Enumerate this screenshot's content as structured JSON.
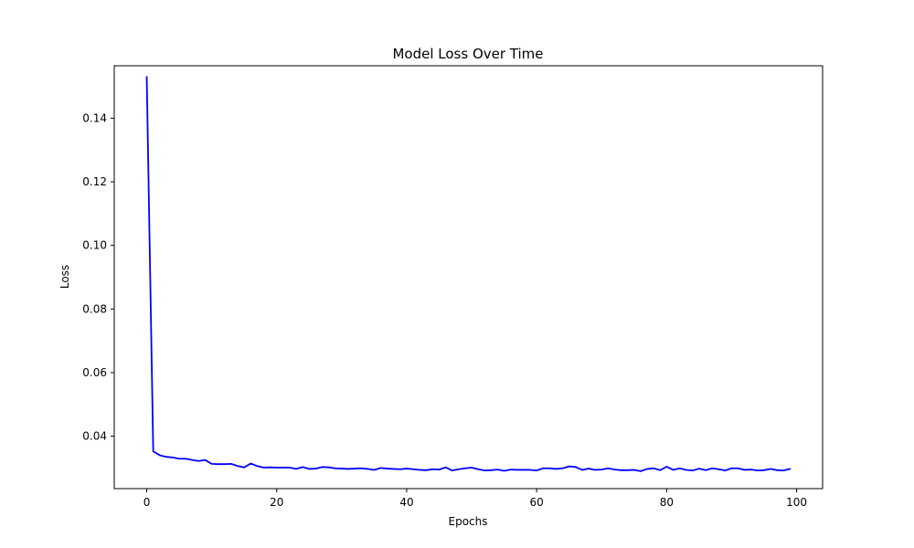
{
  "chart_data": {
    "type": "line",
    "title": "Model Loss Over Time",
    "xlabel": "Epochs",
    "ylabel": "Loss",
    "xlim": [
      -5,
      104
    ],
    "ylim": [
      0.0235,
      0.1565
    ],
    "xticks": [
      0,
      20,
      40,
      60,
      80,
      100
    ],
    "yticks": [
      0.04,
      0.06,
      0.08,
      0.1,
      0.12,
      0.14
    ],
    "xtick_labels": [
      "0",
      "20",
      "40",
      "60",
      "80",
      "100"
    ],
    "ytick_labels": [
      "0.04",
      "0.06",
      "0.08",
      "0.10",
      "0.12",
      "0.14"
    ],
    "grid": false,
    "color": "#0000ff",
    "series": [
      {
        "x": [
          0,
          1,
          2,
          3,
          4,
          5,
          6,
          7,
          8,
          9,
          10,
          11,
          12,
          13,
          14,
          15,
          16,
          17,
          18,
          19,
          20,
          21,
          22,
          23,
          24,
          25,
          26,
          27,
          28,
          29,
          30,
          31,
          32,
          33,
          34,
          35,
          36,
          37,
          38,
          39,
          40,
          41,
          42,
          43,
          44,
          45,
          46,
          47,
          48,
          49,
          50,
          51,
          52,
          53,
          54,
          55,
          56,
          57,
          58,
          59,
          60,
          61,
          62,
          63,
          64,
          65,
          66,
          67,
          68,
          69,
          70,
          71,
          72,
          73,
          74,
          75,
          76,
          77,
          78,
          79,
          80,
          81,
          82,
          83,
          84,
          85,
          86,
          87,
          88,
          89,
          90,
          91,
          92,
          93,
          94,
          95,
          96,
          97,
          98,
          99
        ],
        "values": [
          0.153,
          0.0352,
          0.034,
          0.0335,
          0.0333,
          0.0329,
          0.0329,
          0.0325,
          0.0322,
          0.0325,
          0.0313,
          0.0312,
          0.0312,
          0.0313,
          0.0306,
          0.0302,
          0.0314,
          0.0306,
          0.0301,
          0.0302,
          0.0301,
          0.0301,
          0.0301,
          0.0297,
          0.0303,
          0.0297,
          0.0298,
          0.0303,
          0.0302,
          0.0299,
          0.0298,
          0.0297,
          0.0298,
          0.0299,
          0.0297,
          0.0294,
          0.03,
          0.0298,
          0.0297,
          0.0296,
          0.0298,
          0.0296,
          0.0294,
          0.0293,
          0.0296,
          0.0295,
          0.0302,
          0.0292,
          0.0296,
          0.0299,
          0.0301,
          0.0296,
          0.0292,
          0.0293,
          0.0295,
          0.0291,
          0.0295,
          0.0294,
          0.0294,
          0.0294,
          0.0292,
          0.0299,
          0.0299,
          0.0297,
          0.0299,
          0.0305,
          0.0303,
          0.0294,
          0.0298,
          0.0294,
          0.0295,
          0.0299,
          0.0295,
          0.0293,
          0.0293,
          0.0294,
          0.029,
          0.0297,
          0.0299,
          0.0293,
          0.0304,
          0.0294,
          0.0299,
          0.0294,
          0.0292,
          0.0298,
          0.0293,
          0.0299,
          0.0296,
          0.0292,
          0.0299,
          0.0299,
          0.0294,
          0.0295,
          0.0292,
          0.0293,
          0.0297,
          0.0293,
          0.0292,
          0.0297
        ]
      }
    ]
  }
}
